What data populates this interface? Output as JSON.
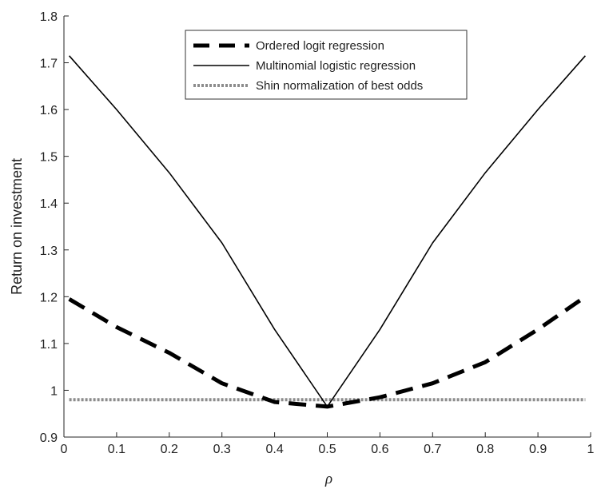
{
  "chart_data": {
    "type": "line",
    "xlabel": "ρ",
    "ylabel": "Return on investment",
    "xlim": [
      0,
      1
    ],
    "ylim": [
      0.9,
      1.8
    ],
    "xticks": [
      0,
      0.1,
      0.2,
      0.3,
      0.4,
      0.5,
      0.6,
      0.7,
      0.8,
      0.9,
      1
    ],
    "xtick_labels": [
      "0",
      "0.1",
      "0.2",
      "0.3",
      "0.4",
      "0.5",
      "0.6",
      "0.7",
      "0.8",
      "0.9",
      "1"
    ],
    "yticks": [
      0.9,
      1.0,
      1.1,
      1.2,
      1.3,
      1.4,
      1.5,
      1.6,
      1.7,
      1.8
    ],
    "ytick_labels": [
      "0.9",
      "1",
      "1.1",
      "1.2",
      "1.3",
      "1.4",
      "1.5",
      "1.6",
      "1.7",
      "1.8"
    ],
    "grid": false,
    "legend_position": "top-center",
    "series": [
      {
        "name": "Ordered logit regression",
        "style": "dashed",
        "color": "#000000",
        "x": [
          0.01,
          0.1,
          0.2,
          0.3,
          0.4,
          0.5,
          0.6,
          0.7,
          0.8,
          0.9,
          0.99
        ],
        "y": [
          1.195,
          1.135,
          1.08,
          1.015,
          0.975,
          0.965,
          0.985,
          1.015,
          1.06,
          1.13,
          1.2
        ]
      },
      {
        "name": "Multinomial logistic regression",
        "style": "solid",
        "color": "#000000",
        "x": [
          0.01,
          0.1,
          0.2,
          0.3,
          0.4,
          0.5,
          0.6,
          0.7,
          0.8,
          0.9,
          0.99
        ],
        "y": [
          1.715,
          1.6,
          1.465,
          1.315,
          1.13,
          0.965,
          1.13,
          1.315,
          1.465,
          1.6,
          1.715
        ]
      },
      {
        "name": "Shin normalization of best odds",
        "style": "dotted",
        "color": "#8c8c8c",
        "x": [
          0.01,
          0.99
        ],
        "y": [
          0.98,
          0.98
        ]
      }
    ]
  }
}
